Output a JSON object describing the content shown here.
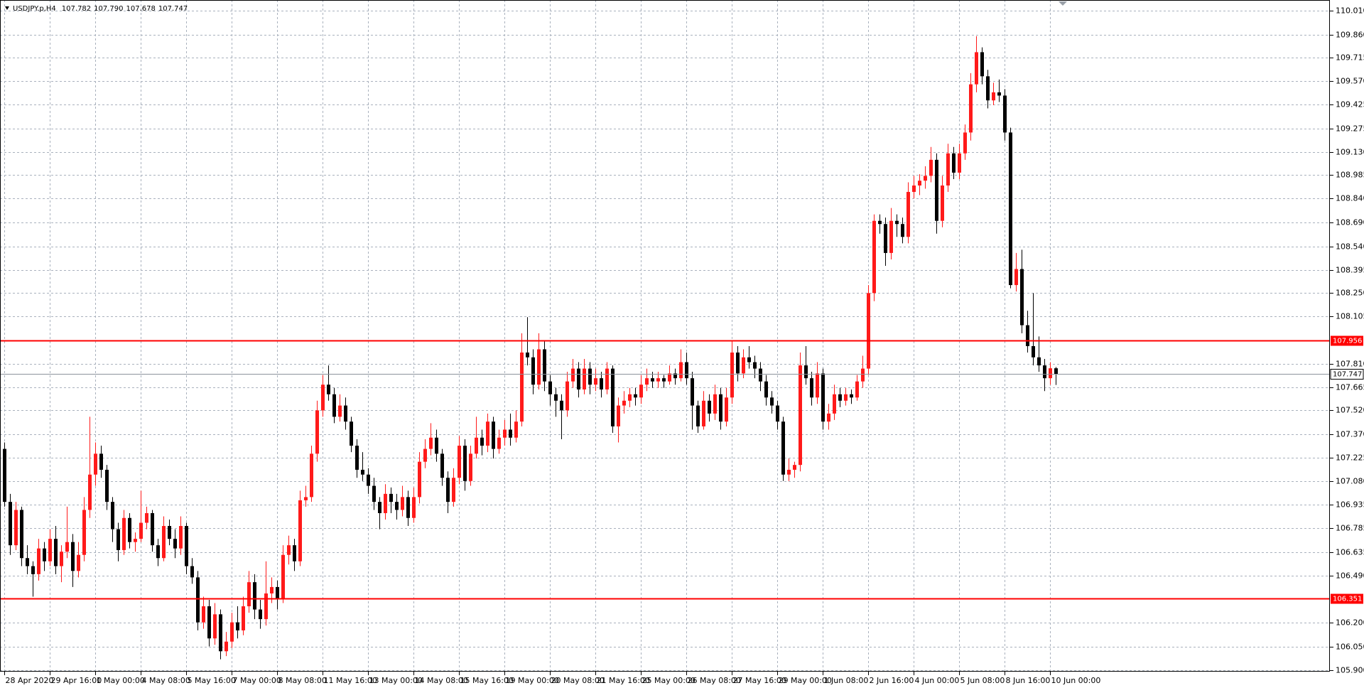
{
  "chart_data": {
    "type": "candlestick",
    "symbol": "USDJPY.p,H4",
    "last_bar_labels": [
      "107.782",
      "107.790",
      "107.678",
      "107.747"
    ],
    "bull_color": "#ff1a1a",
    "bear_color": "#000000",
    "grid": true,
    "ylim": [
      105.893,
      110.075
    ],
    "yticks": [
      {
        "value": 110.01,
        "label": "110.010"
      },
      {
        "value": 109.86,
        "label": "109.860"
      },
      109.715,
      {
        "value": 109.57,
        "label": "109.570"
      },
      109.425,
      109.275,
      {
        "value": 109.13,
        "label": "109.130"
      },
      108.985,
      {
        "value": 108.84,
        "label": "108.840"
      },
      {
        "value": 108.69,
        "label": "108.690"
      },
      {
        "value": 108.54,
        "label": "108.540"
      },
      108.395,
      {
        "value": 108.25,
        "label": "108.250"
      },
      108.105,
      {
        "value": 107.81,
        "label": "107.810"
      },
      107.665,
      {
        "value": 107.52,
        "label": "107.520"
      },
      {
        "value": 107.37,
        "label": "107.370"
      },
      107.225,
      {
        "value": 107.08,
        "label": "107.080"
      },
      106.935,
      106.785,
      106.635,
      {
        "value": 106.49,
        "label": "106.490"
      },
      {
        "value": 106.2,
        "label": "106.200"
      },
      {
        "value": 106.05,
        "label": "106.050"
      },
      {
        "value": 105.9,
        "label": "105.900"
      }
    ],
    "levels": [
      {
        "value": 107.956,
        "color": "#ff0000"
      },
      {
        "value": 106.351,
        "color": "#ff0000"
      }
    ],
    "last_price": {
      "value": 107.747,
      "color": "#8c939c"
    },
    "categories": [
      "28 Apr 2020",
      null,
      null,
      null,
      null,
      null,
      null,
      null,
      "29 Apr 16:00",
      null,
      null,
      null,
      null,
      null,
      null,
      null,
      "1 May 00:00",
      null,
      null,
      null,
      null,
      null,
      null,
      null,
      "4 May 08:00",
      null,
      null,
      null,
      null,
      null,
      null,
      null,
      "5 May 16:00",
      null,
      null,
      null,
      null,
      null,
      null,
      null,
      "7 May 00:00",
      null,
      null,
      null,
      null,
      null,
      null,
      null,
      "8 May 08:00",
      null,
      null,
      null,
      null,
      null,
      null,
      null,
      "11 May 16:00",
      null,
      null,
      null,
      null,
      null,
      null,
      null,
      "13 May 00:00",
      null,
      null,
      null,
      null,
      null,
      null,
      null,
      "14 May 08:00",
      null,
      null,
      null,
      null,
      null,
      null,
      null,
      "15 May 16:00",
      null,
      null,
      null,
      null,
      null,
      null,
      null,
      "19 May 00:00",
      null,
      null,
      null,
      null,
      null,
      null,
      null,
      "20 May 08:00",
      null,
      null,
      null,
      null,
      null,
      null,
      null,
      "21 May 16:00",
      null,
      null,
      null,
      null,
      null,
      null,
      null,
      "25 May 00:00",
      null,
      null,
      null,
      null,
      null,
      null,
      null,
      "26 May 08:00",
      null,
      null,
      null,
      null,
      null,
      null,
      null,
      "27 May 16:00",
      null,
      null,
      null,
      null,
      null,
      null,
      null,
      "29 May 00:00",
      null,
      null,
      null,
      null,
      null,
      null,
      null,
      "1 Jun 08:00",
      null,
      null,
      null,
      null,
      null,
      null,
      null,
      "2 Jun 16:00",
      null,
      null,
      null,
      null,
      null,
      null,
      null,
      "4 Jun 00:00",
      null,
      null,
      null,
      null,
      null,
      null,
      null,
      "5 Jun 08:00",
      null,
      null,
      null,
      null,
      null,
      null,
      null,
      "8 Jun 16:00",
      null,
      null,
      null,
      null,
      null,
      null,
      null,
      "10 Jun 00:00",
      null
    ],
    "ohlc": [
      [
        107.28,
        107.32,
        106.92,
        106.95
      ],
      [
        106.95,
        107.0,
        106.62,
        106.68
      ],
      [
        106.68,
        106.95,
        106.65,
        106.9
      ],
      [
        106.9,
        106.92,
        106.55,
        106.6
      ],
      [
        106.6,
        106.68,
        106.5,
        106.55
      ],
      [
        106.55,
        106.58,
        106.36,
        106.5
      ],
      [
        106.5,
        106.72,
        106.46,
        106.66
      ],
      [
        106.66,
        106.7,
        106.52,
        106.58
      ],
      [
        106.58,
        106.78,
        106.55,
        106.72
      ],
      [
        106.72,
        106.8,
        106.5,
        106.55
      ],
      [
        106.55,
        106.68,
        106.45,
        106.64
      ],
      [
        106.64,
        106.92,
        106.6,
        106.7
      ],
      [
        106.7,
        106.75,
        106.42,
        106.52
      ],
      [
        106.52,
        106.7,
        106.48,
        106.62
      ],
      [
        106.62,
        106.98,
        106.58,
        106.9
      ],
      [
        106.9,
        107.48,
        106.85,
        107.12
      ],
      [
        107.12,
        107.32,
        107.05,
        107.25
      ],
      [
        107.25,
        107.3,
        107.1,
        107.15
      ],
      [
        107.15,
        107.18,
        106.9,
        106.95
      ],
      [
        106.95,
        106.98,
        106.7,
        106.78
      ],
      [
        106.78,
        106.82,
        106.58,
        106.65
      ],
      [
        106.65,
        106.9,
        106.62,
        106.85
      ],
      [
        106.85,
        106.88,
        106.66,
        106.7
      ],
      [
        106.7,
        106.76,
        106.64,
        106.72
      ],
      [
        106.72,
        107.02,
        106.7,
        106.82
      ],
      [
        106.82,
        106.92,
        106.78,
        106.88
      ],
      [
        106.88,
        106.9,
        106.64,
        106.68
      ],
      [
        106.68,
        106.72,
        106.55,
        106.6
      ],
      [
        106.6,
        106.86,
        106.58,
        106.8
      ],
      [
        106.8,
        106.84,
        106.68,
        106.72
      ],
      [
        106.72,
        106.78,
        106.6,
        106.66
      ],
      [
        106.66,
        106.86,
        106.62,
        106.8
      ],
      [
        106.8,
        106.82,
        106.5,
        106.55
      ],
      [
        106.55,
        106.6,
        106.44,
        106.48
      ],
      [
        106.48,
        106.52,
        106.15,
        106.2
      ],
      [
        106.2,
        106.36,
        106.16,
        106.3
      ],
      [
        106.3,
        106.34,
        106.05,
        106.1
      ],
      [
        106.1,
        106.32,
        106.06,
        106.25
      ],
      [
        106.25,
        106.28,
        105.97,
        106.02
      ],
      [
        106.02,
        106.14,
        105.99,
        106.08
      ],
      [
        106.08,
        106.26,
        106.04,
        106.2
      ],
      [
        106.2,
        106.3,
        106.1,
        106.15
      ],
      [
        106.15,
        106.36,
        106.12,
        106.3
      ],
      [
        106.3,
        106.52,
        106.26,
        106.45
      ],
      [
        106.45,
        106.5,
        106.22,
        106.28
      ],
      [
        106.28,
        106.34,
        106.16,
        106.22
      ],
      [
        106.22,
        106.58,
        106.18,
        106.38
      ],
      [
        106.38,
        106.48,
        106.32,
        106.42
      ],
      [
        106.42,
        106.46,
        106.28,
        106.35
      ],
      [
        106.35,
        106.68,
        106.32,
        106.62
      ],
      [
        106.62,
        106.74,
        106.56,
        106.68
      ],
      [
        106.68,
        106.72,
        106.52,
        106.58
      ],
      [
        106.58,
        107.02,
        106.55,
        106.96
      ],
      [
        106.96,
        107.05,
        106.92,
        106.98
      ],
      [
        106.98,
        107.3,
        106.95,
        107.25
      ],
      [
        107.25,
        107.58,
        107.2,
        107.52
      ],
      [
        107.52,
        107.74,
        107.48,
        107.68
      ],
      [
        107.68,
        107.8,
        107.58,
        107.62
      ],
      [
        107.62,
        107.66,
        107.44,
        107.48
      ],
      [
        107.48,
        107.62,
        107.45,
        107.55
      ],
      [
        107.55,
        107.6,
        107.4,
        107.45
      ],
      [
        107.45,
        107.48,
        107.26,
        107.3
      ],
      [
        107.3,
        107.34,
        107.1,
        107.15
      ],
      [
        107.15,
        107.26,
        107.08,
        107.12
      ],
      [
        107.12,
        107.16,
        107.0,
        107.05
      ],
      [
        107.05,
        107.1,
        106.9,
        106.95
      ],
      [
        106.95,
        106.98,
        106.78,
        106.88
      ],
      [
        106.88,
        107.06,
        106.84,
        107.0
      ],
      [
        107.0,
        107.04,
        106.88,
        106.95
      ],
      [
        106.95,
        107.0,
        106.84,
        106.9
      ],
      [
        106.9,
        107.05,
        106.86,
        106.98
      ],
      [
        106.98,
        107.02,
        106.8,
        106.85
      ],
      [
        106.85,
        107.04,
        106.82,
        106.98
      ],
      [
        106.98,
        107.26,
        106.94,
        107.2
      ],
      [
        107.2,
        107.34,
        107.16,
        107.28
      ],
      [
        107.28,
        107.44,
        107.24,
        107.35
      ],
      [
        107.35,
        107.4,
        107.2,
        107.25
      ],
      [
        107.25,
        107.28,
        107.05,
        107.1
      ],
      [
        107.1,
        107.14,
        106.88,
        106.95
      ],
      [
        106.95,
        107.16,
        106.92,
        107.1
      ],
      [
        107.1,
        107.36,
        107.06,
        107.3
      ],
      [
        107.3,
        107.34,
        107.02,
        107.08
      ],
      [
        107.08,
        107.3,
        107.05,
        107.25
      ],
      [
        107.25,
        107.48,
        107.22,
        107.35
      ],
      [
        107.35,
        107.4,
        107.24,
        107.3
      ],
      [
        107.3,
        107.5,
        107.26,
        107.45
      ],
      [
        107.45,
        107.48,
        107.22,
        107.28
      ],
      [
        107.28,
        107.4,
        107.25,
        107.35
      ],
      [
        107.35,
        107.46,
        107.3,
        107.4
      ],
      [
        107.4,
        107.5,
        107.3,
        107.35
      ],
      [
        107.35,
        107.52,
        107.32,
        107.45
      ],
      [
        107.45,
        108.0,
        107.42,
        107.88
      ],
      [
        107.88,
        108.1,
        107.8,
        107.85
      ],
      [
        107.85,
        107.9,
        107.62,
        107.68
      ],
      [
        107.68,
        108.0,
        107.65,
        107.9
      ],
      [
        107.9,
        107.95,
        107.64,
        107.7
      ],
      [
        107.7,
        107.74,
        107.55,
        107.62
      ],
      [
        107.62,
        107.66,
        107.48,
        107.58
      ],
      [
        107.58,
        107.62,
        107.34,
        107.52
      ],
      [
        107.52,
        107.76,
        107.48,
        107.7
      ],
      [
        107.7,
        107.84,
        107.66,
        107.78
      ],
      [
        107.78,
        107.82,
        107.6,
        107.65
      ],
      [
        107.65,
        107.84,
        107.62,
        107.78
      ],
      [
        107.78,
        107.82,
        107.62,
        107.68
      ],
      [
        107.68,
        107.78,
        107.64,
        107.72
      ],
      [
        107.72,
        107.76,
        107.6,
        107.65
      ],
      [
        107.65,
        107.82,
        107.62,
        107.78
      ],
      [
        107.78,
        107.8,
        107.38,
        107.42
      ],
      [
        107.42,
        107.6,
        107.32,
        107.55
      ],
      [
        107.55,
        107.64,
        107.5,
        107.58
      ],
      [
        107.58,
        107.66,
        107.54,
        107.62
      ],
      [
        107.62,
        107.66,
        107.55,
        107.6
      ],
      [
        107.6,
        107.74,
        107.56,
        107.68
      ],
      [
        107.68,
        107.78,
        107.64,
        107.72
      ],
      [
        107.72,
        107.76,
        107.66,
        107.7
      ],
      [
        107.7,
        107.76,
        107.66,
        107.72
      ],
      [
        107.72,
        107.74,
        107.66,
        107.7
      ],
      [
        107.7,
        107.8,
        107.68,
        107.75
      ],
      [
        107.75,
        107.78,
        107.68,
        107.72
      ],
      [
        107.72,
        107.9,
        107.7,
        107.82
      ],
      [
        107.82,
        107.88,
        107.68,
        107.72
      ],
      [
        107.72,
        107.76,
        107.4,
        107.55
      ],
      [
        107.55,
        107.58,
        107.38,
        107.42
      ],
      [
        107.42,
        107.64,
        107.4,
        107.58
      ],
      [
        107.58,
        107.62,
        107.45,
        107.5
      ],
      [
        107.5,
        107.68,
        107.46,
        107.62
      ],
      [
        107.62,
        107.66,
        107.4,
        107.45
      ],
      [
        107.45,
        107.66,
        107.42,
        107.6
      ],
      [
        107.6,
        107.95,
        107.56,
        107.88
      ],
      [
        107.88,
        107.92,
        107.7,
        107.75
      ],
      [
        107.75,
        107.9,
        107.72,
        107.85
      ],
      [
        107.85,
        107.92,
        107.78,
        107.82
      ],
      [
        107.82,
        107.86,
        107.72,
        107.78
      ],
      [
        107.78,
        107.82,
        107.64,
        107.7
      ],
      [
        107.7,
        107.74,
        107.55,
        107.6
      ],
      [
        107.6,
        107.64,
        107.5,
        107.55
      ],
      [
        107.55,
        107.58,
        107.4,
        107.45
      ],
      [
        107.45,
        107.48,
        107.08,
        107.12
      ],
      [
        107.12,
        107.22,
        107.08,
        107.15
      ],
      [
        107.15,
        107.2,
        107.1,
        107.18
      ],
      [
        107.18,
        107.88,
        107.14,
        107.8
      ],
      [
        107.8,
        107.92,
        107.68,
        107.72
      ],
      [
        107.72,
        107.76,
        107.55,
        107.6
      ],
      [
        107.6,
        107.82,
        107.56,
        107.75
      ],
      [
        107.75,
        107.78,
        107.4,
        107.45
      ],
      [
        107.45,
        107.56,
        107.4,
        107.5
      ],
      [
        107.5,
        107.68,
        107.46,
        107.62
      ],
      [
        107.62,
        107.66,
        107.54,
        107.58
      ],
      [
        107.58,
        107.66,
        107.55,
        107.62
      ],
      [
        107.62,
        107.65,
        107.56,
        107.6
      ],
      [
        107.6,
        107.74,
        107.58,
        107.7
      ],
      [
        107.7,
        107.86,
        107.66,
        107.78
      ],
      [
        107.78,
        108.3,
        107.74,
        108.25
      ],
      [
        108.25,
        108.74,
        108.2,
        108.7
      ],
      [
        108.7,
        108.74,
        108.62,
        108.68
      ],
      [
        108.68,
        108.72,
        108.42,
        108.5
      ],
      [
        108.5,
        108.78,
        108.46,
        108.7
      ],
      [
        108.7,
        108.74,
        108.6,
        108.68
      ],
      [
        108.68,
        108.72,
        108.56,
        108.6
      ],
      [
        108.6,
        108.94,
        108.56,
        108.88
      ],
      [
        108.88,
        108.98,
        108.84,
        108.92
      ],
      [
        108.92,
        108.99,
        108.86,
        108.95
      ],
      [
        108.95,
        109.04,
        108.9,
        108.98
      ],
      [
        108.98,
        109.16,
        108.94,
        109.08
      ],
      [
        109.08,
        109.12,
        108.62,
        108.7
      ],
      [
        108.7,
        108.98,
        108.66,
        108.92
      ],
      [
        108.92,
        109.18,
        108.88,
        109.12
      ],
      [
        109.12,
        109.16,
        108.96,
        109.0
      ],
      [
        109.0,
        109.18,
        108.96,
        109.12
      ],
      [
        109.12,
        109.3,
        109.08,
        109.25
      ],
      [
        109.25,
        109.62,
        109.2,
        109.55
      ],
      [
        109.55,
        109.85,
        109.5,
        109.75
      ],
      [
        109.75,
        109.78,
        109.55,
        109.6
      ],
      [
        109.6,
        109.64,
        109.4,
        109.45
      ],
      [
        109.45,
        109.56,
        109.42,
        109.5
      ],
      [
        109.5,
        109.58,
        109.44,
        109.48
      ],
      [
        109.48,
        109.52,
        109.2,
        109.25
      ],
      [
        109.25,
        109.28,
        108.28,
        108.3
      ],
      [
        108.3,
        108.5,
        108.26,
        108.4
      ],
      [
        108.4,
        108.52,
        108.0,
        108.05
      ],
      [
        108.05,
        108.14,
        107.88,
        107.92
      ],
      [
        107.92,
        108.25,
        107.8,
        107.85
      ],
      [
        107.85,
        107.98,
        107.76,
        107.8
      ],
      [
        107.8,
        107.84,
        107.64,
        107.72
      ],
      [
        107.72,
        107.82,
        107.68,
        107.782
      ],
      [
        107.782,
        107.79,
        107.678,
        107.747
      ]
    ]
  }
}
